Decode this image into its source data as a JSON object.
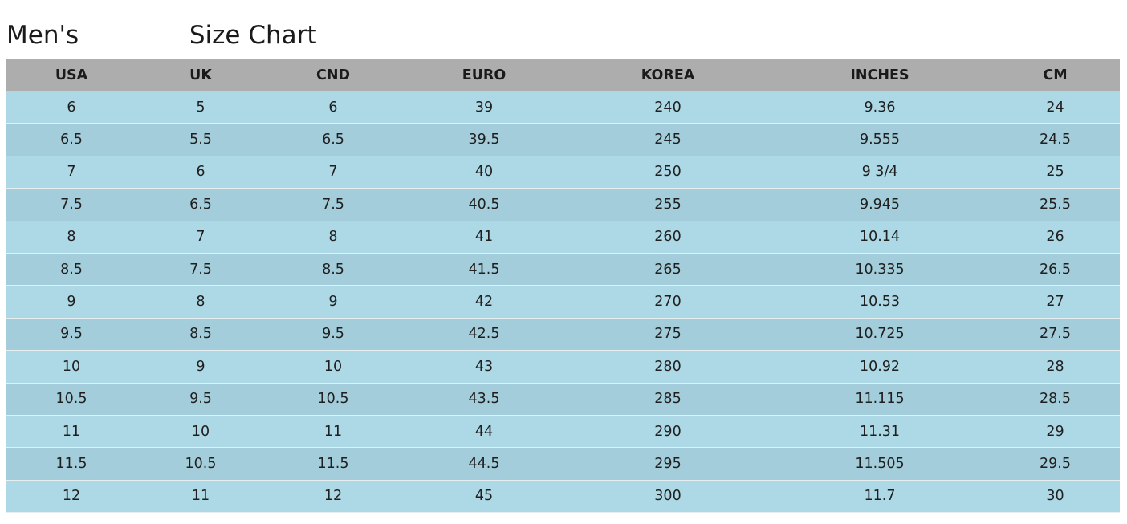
{
  "title": {
    "prefix": "Men's",
    "suffix": "Size Chart"
  },
  "colors": {
    "header": "#adadad",
    "row_odd": "#add8e6",
    "row_even": "#a3cdda"
  },
  "table": {
    "headers": [
      "USA",
      "UK",
      "CND",
      "EURO",
      "KOREA",
      "INCHES",
      "CM"
    ],
    "rows": [
      [
        "6",
        "5",
        "6",
        "39",
        "240",
        "9.36",
        "24"
      ],
      [
        "6.5",
        "5.5",
        "6.5",
        "39.5",
        "245",
        "9.555",
        "24.5"
      ],
      [
        "7",
        "6",
        "7",
        "40",
        "250",
        "9 3/4",
        "25"
      ],
      [
        "7.5",
        "6.5",
        "7.5",
        "40.5",
        "255",
        "9.945",
        "25.5"
      ],
      [
        "8",
        "7",
        "8",
        "41",
        "260",
        "10.14",
        "26"
      ],
      [
        "8.5",
        "7.5",
        "8.5",
        "41.5",
        "265",
        "10.335",
        "26.5"
      ],
      [
        "9",
        "8",
        "9",
        "42",
        "270",
        "10.53",
        "27"
      ],
      [
        "9.5",
        "8.5",
        "9.5",
        "42.5",
        "275",
        "10.725",
        "27.5"
      ],
      [
        "10",
        "9",
        "10",
        "43",
        "280",
        "10.92",
        "28"
      ],
      [
        "10.5",
        "9.5",
        "10.5",
        "43.5",
        "285",
        "11.115",
        "28.5"
      ],
      [
        "11",
        "10",
        "11",
        "44",
        "290",
        "11.31",
        "29"
      ],
      [
        "11.5",
        "10.5",
        "11.5",
        "44.5",
        "295",
        "11.505",
        "29.5"
      ],
      [
        "12",
        "11",
        "12",
        "45",
        "300",
        "11.7",
        "30"
      ]
    ]
  }
}
